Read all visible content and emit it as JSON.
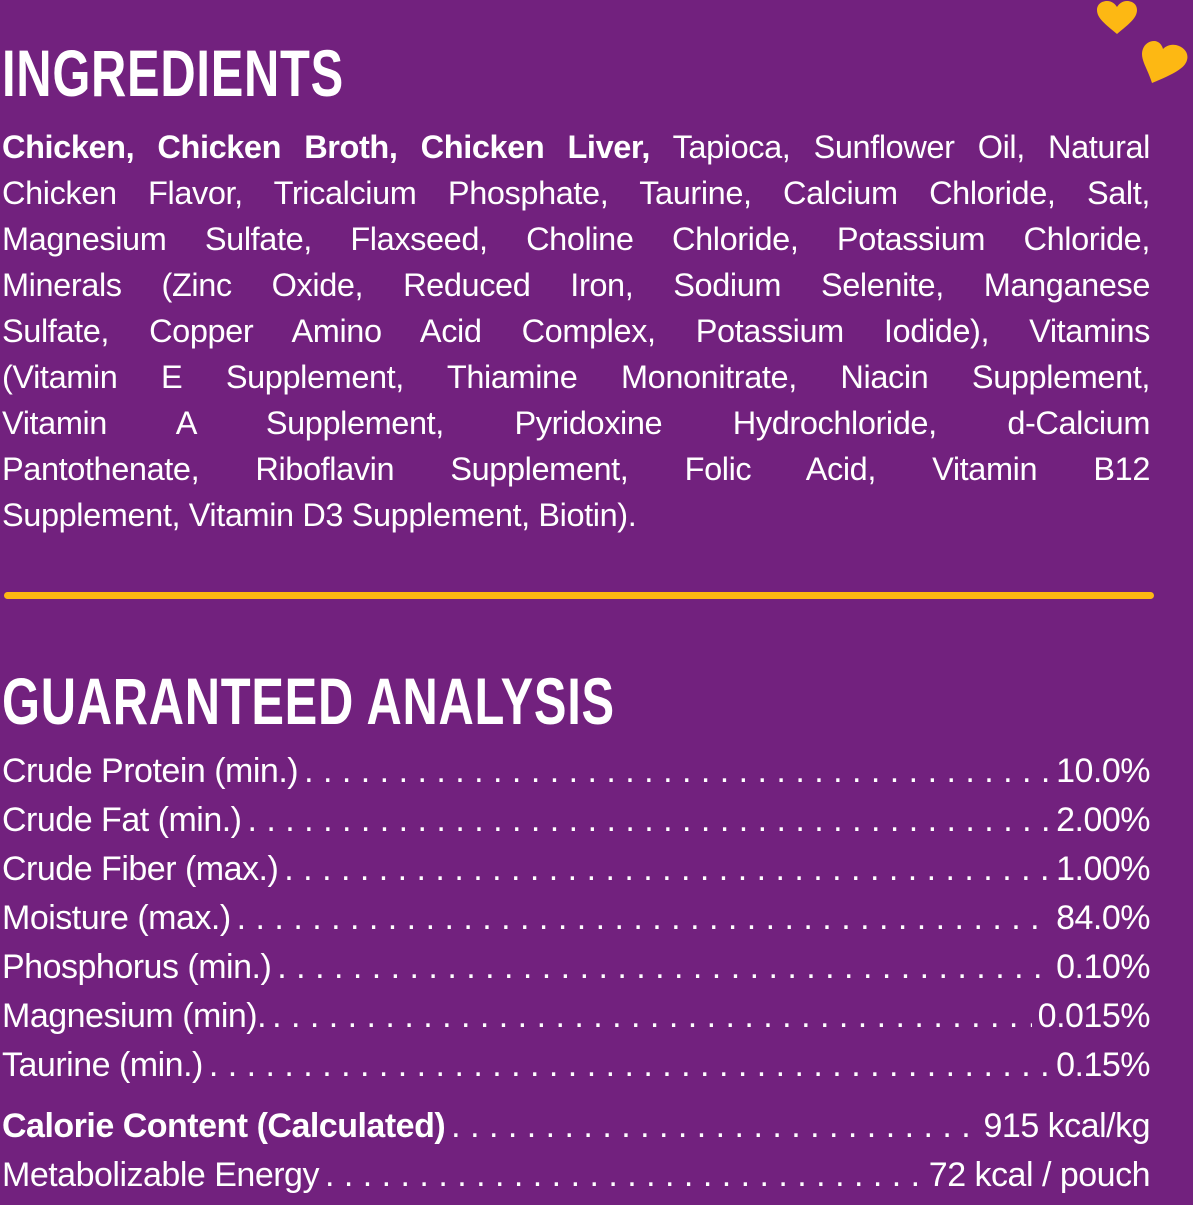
{
  "colors": {
    "background": "#72217e",
    "accent": "#fdb813",
    "text": "#ffffff"
  },
  "ingredients": {
    "title": "INGREDIENTS",
    "bold_prefix": "Chicken, Chicken Broth, Chicken Liver,",
    "lines": [
      " Tapioca, Sunflower Oil, Natural",
      "Chicken Flavor, Tricalcium Phosphate, Taurine, Calcium Chloride, Salt,",
      "Magnesium Sulfate, Flaxseed, Choline Chloride, Potassium Chloride,",
      "Minerals (Zinc Oxide, Reduced Iron, Sodium Selenite, Manganese",
      "Sulfate, Copper Amino Acid Complex, Potassium Iodide), Vitamins",
      "(Vitamin E Supplement, Thiamine Mononitrate, Niacin Supplement,",
      "Vitamin A Supplement, Pyridoxine Hydrochloride, d-Calcium",
      "Pantothenate, Riboflavin Supplement, Folic Acid, Vitamin B12",
      "Supplement, Vitamin D3 Supplement, Biotin)."
    ]
  },
  "analysis": {
    "title": "GUARANTEED ANALYSIS",
    "rows": [
      {
        "label": "Crude Protein (min.)",
        "value": "10.0%"
      },
      {
        "label": "Crude Fat (min.)",
        "value": "2.00%"
      },
      {
        "label": "Crude Fiber (max.)",
        "value": "1.00%"
      },
      {
        "label": "Moisture (max.)",
        "value": "84.0%"
      },
      {
        "label": "Phosphorus (min.)",
        "value": "0.10%"
      },
      {
        "label": "Magnesium (min).",
        "value": "0.015%"
      },
      {
        "label": "Taurine (min.)",
        "value": "0.15%"
      }
    ],
    "calorie": {
      "label": "Calorie Content (Calculated)",
      "value": "915 kcal/kg"
    },
    "energy": {
      "label": "Metabolizable Energy",
      "value": "72 kcal / pouch"
    }
  }
}
